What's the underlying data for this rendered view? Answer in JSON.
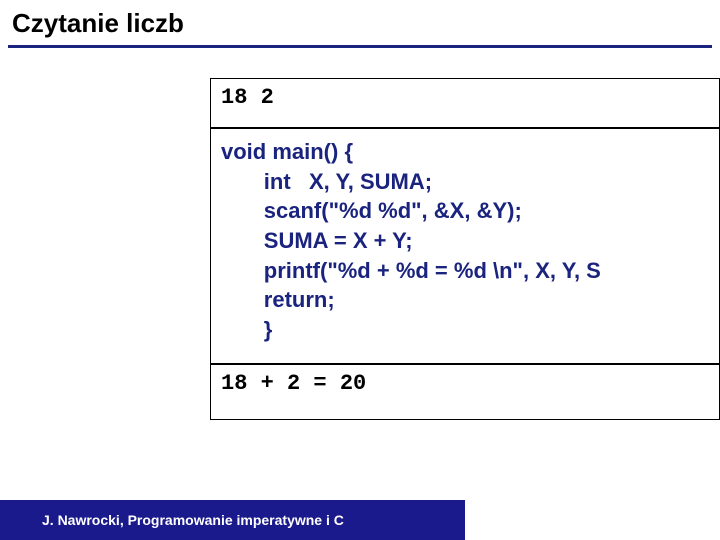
{
  "slide": {
    "title": "Czytanie liczb",
    "title_color": "#000000",
    "title_fontsize": 26,
    "underline_color": "#1a237e",
    "background_color": "#ffffff"
  },
  "input_box": {
    "text": "18 2",
    "font_family": "Courier New",
    "font_size": 22,
    "font_weight": "bold",
    "color": "#000000",
    "border_color": "#000000"
  },
  "code_box": {
    "lines": [
      "void main() {",
      "       int   X, Y, SUMA;",
      "",
      "       scanf(\"%d %d\", &X, &Y);",
      "       SUMA = X + Y;",
      "       printf(\"%d + %d = %d \\n\", X, Y, S",
      "       return;",
      "       }"
    ],
    "font_family": "Arial",
    "font_size": 22,
    "font_weight": "bold",
    "color": "#1a237e",
    "border_color": "#000000"
  },
  "output_box": {
    "text": "18 + 2 = 20",
    "font_family": "Courier New",
    "font_size": 22,
    "font_weight": "bold",
    "color": "#000000",
    "border_color": "#000000"
  },
  "footer": {
    "text": "J. Nawrocki, Programowanie imperatywne i C",
    "background_color": "#1a1a8c",
    "text_color": "#ffffff",
    "font_size": 14,
    "font_weight": "bold"
  }
}
